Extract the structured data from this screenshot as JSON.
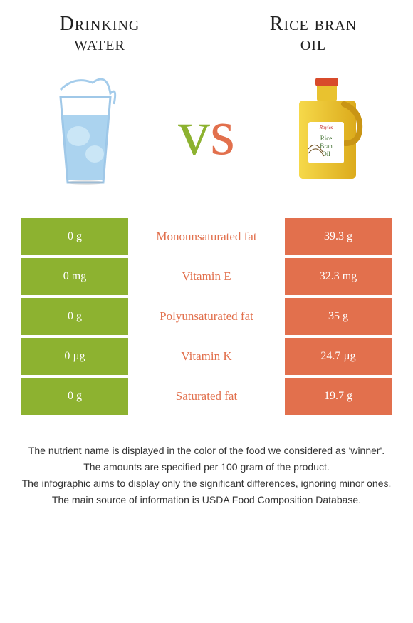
{
  "colors": {
    "left": "#8db230",
    "right": "#e2704d",
    "white": "#ffffff",
    "text": "#222222"
  },
  "titles": {
    "left_line1": "Drinking",
    "left_line2": "water",
    "right_line1": "Rice bran",
    "right_line2": "oil"
  },
  "vs": {
    "v": "v",
    "s": "s"
  },
  "rows": [
    {
      "left": "0 g",
      "label": "Monounsaturated fat",
      "right": "39.3 g",
      "winner": "right"
    },
    {
      "left": "0 mg",
      "label": "Vitamin E",
      "right": "32.3 mg",
      "winner": "right"
    },
    {
      "left": "0 g",
      "label": "Polyunsaturated fat",
      "right": "35 g",
      "winner": "right"
    },
    {
      "left": "0 µg",
      "label": "Vitamin K",
      "right": "24.7 µg",
      "winner": "right"
    },
    {
      "left": "0 g",
      "label": "Saturated fat",
      "right": "19.7 g",
      "winner": "right"
    }
  ],
  "footer": [
    "The nutrient name is displayed in the color of the food we considered as 'winner'.",
    "The amounts are specified per 100 gram of the product.",
    "The infographic aims to display only the significant differences, ignoring minor ones.",
    "The main source of information is USDA Food Composition Database."
  ]
}
